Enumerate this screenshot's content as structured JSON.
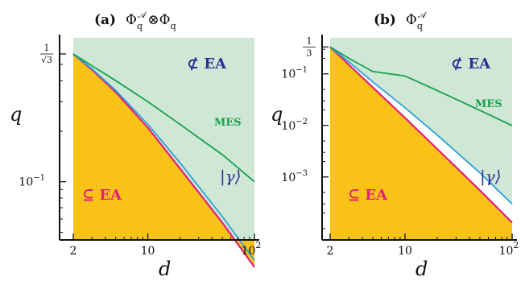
{
  "colors": {
    "region_not_ea": "#cfe7d5",
    "region_ea": "#f9c217",
    "curve_ea_boundary": "#e2207a",
    "curve_gamma": "#2aa3d8",
    "curve_mes": "#17a050",
    "label_not_ea": "#2e3192",
    "label_ea": "#e2207a"
  },
  "chart_data": [
    {
      "type": "line",
      "title": "(a)  Φ_q^A⊗Φ_q^B",
      "panel_label": "(a)",
      "title_formula": "Φq𝒜⊗Φq𝒝",
      "xlabel": "d",
      "ylabel": "q",
      "xscale": "log",
      "yscale": "log",
      "xlim": [
        2,
        100
      ],
      "ylim": [
        0.045,
        0.72
      ],
      "x_ticks": [
        "2",
        "10",
        "10^2"
      ],
      "y_ticks": [
        "1/√3",
        "10^-1"
      ],
      "region_labels": {
        "not_ea": "⊄ EA",
        "ea": "⊆ EA"
      },
      "series": [
        {
          "name": "MES",
          "x": [
            2,
            3,
            5,
            10,
            20,
            50,
            100
          ],
          "y": [
            0.577,
            0.49,
            0.4,
            0.3,
            0.22,
            0.145,
            0.1
          ]
        },
        {
          "name": "|γ⟩",
          "x": [
            2,
            3,
            5,
            10,
            20,
            50,
            100
          ],
          "y": [
            0.577,
            0.47,
            0.35,
            0.22,
            0.13,
            0.062,
            0.034
          ]
        },
        {
          "name": "EA boundary",
          "x": [
            2,
            3,
            5,
            10,
            20,
            50,
            100
          ],
          "y": [
            0.577,
            0.465,
            0.342,
            0.21,
            0.12,
            0.057,
            0.031
          ]
        }
      ]
    },
    {
      "type": "line",
      "title": "(b)  Φ_q^AB",
      "panel_label": "(b)",
      "title_formula": "Φq𝒜𝒝",
      "xlabel": "d",
      "ylabel": "q",
      "xscale": "log",
      "yscale": "log",
      "xlim": [
        2,
        100
      ],
      "ylim": [
        6e-05,
        0.5
      ],
      "x_ticks": [
        "2",
        "10",
        "10^2"
      ],
      "y_ticks": [
        "1/3",
        "10^-1",
        "10^-2",
        "10^-3"
      ],
      "region_labels": {
        "not_ea": "⊄ EA",
        "ea": "⊆ EA"
      },
      "series": [
        {
          "name": "MES",
          "x": [
            2,
            3,
            5,
            10,
            20,
            50,
            100
          ],
          "y": [
            0.333,
            0.2,
            0.111,
            0.0909,
            0.0476,
            0.0196,
            0.0099
          ]
        },
        {
          "name": "|γ⟩",
          "x": [
            2,
            3,
            5,
            10,
            20,
            50,
            100
          ],
          "y": [
            0.333,
            0.17,
            0.07,
            0.022,
            0.0065,
            0.0012,
            0.0003
          ]
        },
        {
          "name": "EA boundary",
          "x": [
            2,
            3,
            5,
            10,
            20,
            50,
            100
          ],
          "y": [
            0.333,
            0.15,
            0.055,
            0.014,
            0.0035,
            0.00055,
            0.00013
          ]
        }
      ]
    }
  ]
}
